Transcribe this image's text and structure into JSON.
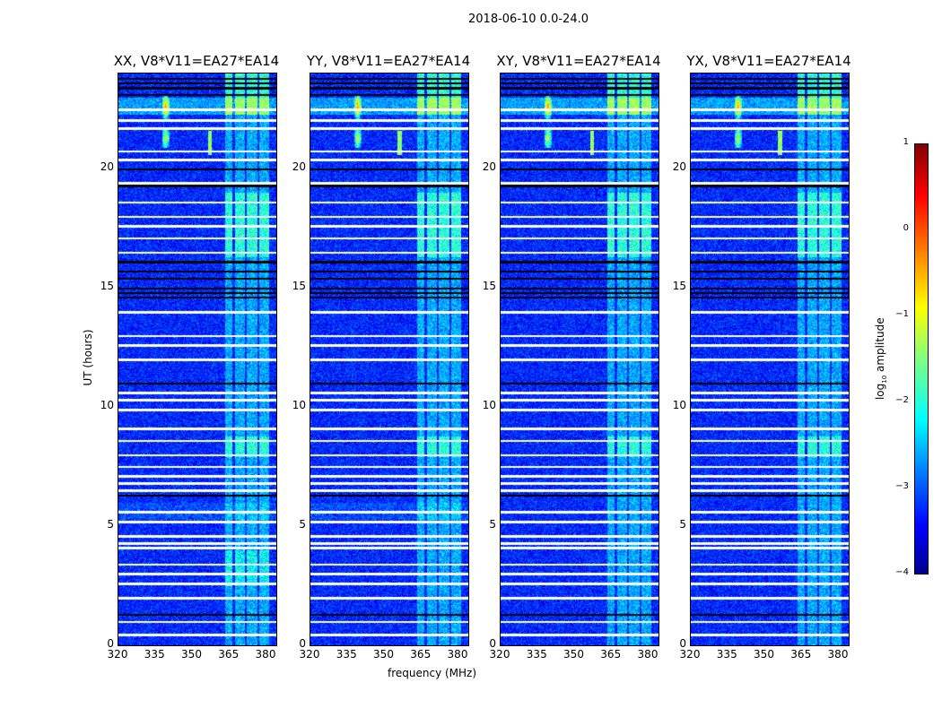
{
  "chart_data": {
    "type": "heatmap",
    "title": "2018-06-10 0.0-24.0",
    "xlabel": "frequency (MHz)",
    "ylabel": "UT (hours)",
    "xlim": [
      320,
      384
    ],
    "ylim": [
      0,
      24
    ],
    "xticks": [
      "320",
      "335",
      "350",
      "365",
      "380"
    ],
    "xtick_values": [
      320,
      335,
      350,
      365,
      380
    ],
    "yticks": [
      "0",
      "5",
      "10",
      "15",
      "20"
    ],
    "ytick_values": [
      0,
      5,
      10,
      15,
      20
    ],
    "panels": [
      {
        "title": "XX, V8*V11=EA27*EA14",
        "rfi_358": true
      },
      {
        "title": "YY, V8*V11=EA27*EA14",
        "rfi_358": true
      },
      {
        "title": "XY, V8*V11=EA27*EA14",
        "rfi_358": true
      },
      {
        "title": "YX, V8*V11=EA27*EA14",
        "rfi_358": true
      }
    ],
    "colorbar": {
      "label": "log",
      "label_sub": "10",
      "label_suffix": " amplitude",
      "range": [
        -4,
        1
      ],
      "ticks": [
        "1",
        "0",
        "−1",
        "−2",
        "−3",
        "−4"
      ],
      "tick_values": [
        1,
        0,
        -1,
        -2,
        -3,
        -4
      ],
      "colormap": "jet"
    },
    "background_level": -3.2,
    "band_MHz": [
      [
        363,
        366
      ],
      [
        367,
        371
      ],
      [
        372,
        376
      ],
      [
        377,
        381
      ]
    ],
    "flagged_hours_white": [
      0.45,
      1.0,
      2.0,
      2.6,
      3.0,
      3.4,
      4.1,
      4.3,
      4.6,
      5.2,
      5.6,
      6.5,
      6.8,
      7.1,
      7.5,
      8.0,
      8.6,
      9.1,
      9.9,
      10.3,
      10.6,
      12.0,
      12.6,
      13.0,
      14.0,
      16.5,
      17.1,
      17.6,
      18.0,
      18.6,
      19.4,
      20.4,
      20.75,
      21.7,
      22.05,
      22.5
    ],
    "flagged_hours_black": [
      1.3,
      6.3,
      11.0,
      14.6,
      14.8,
      15.0,
      15.4,
      15.7,
      16.1,
      19.3,
      20.0,
      23.1,
      23.4,
      23.6,
      23.8
    ]
  }
}
